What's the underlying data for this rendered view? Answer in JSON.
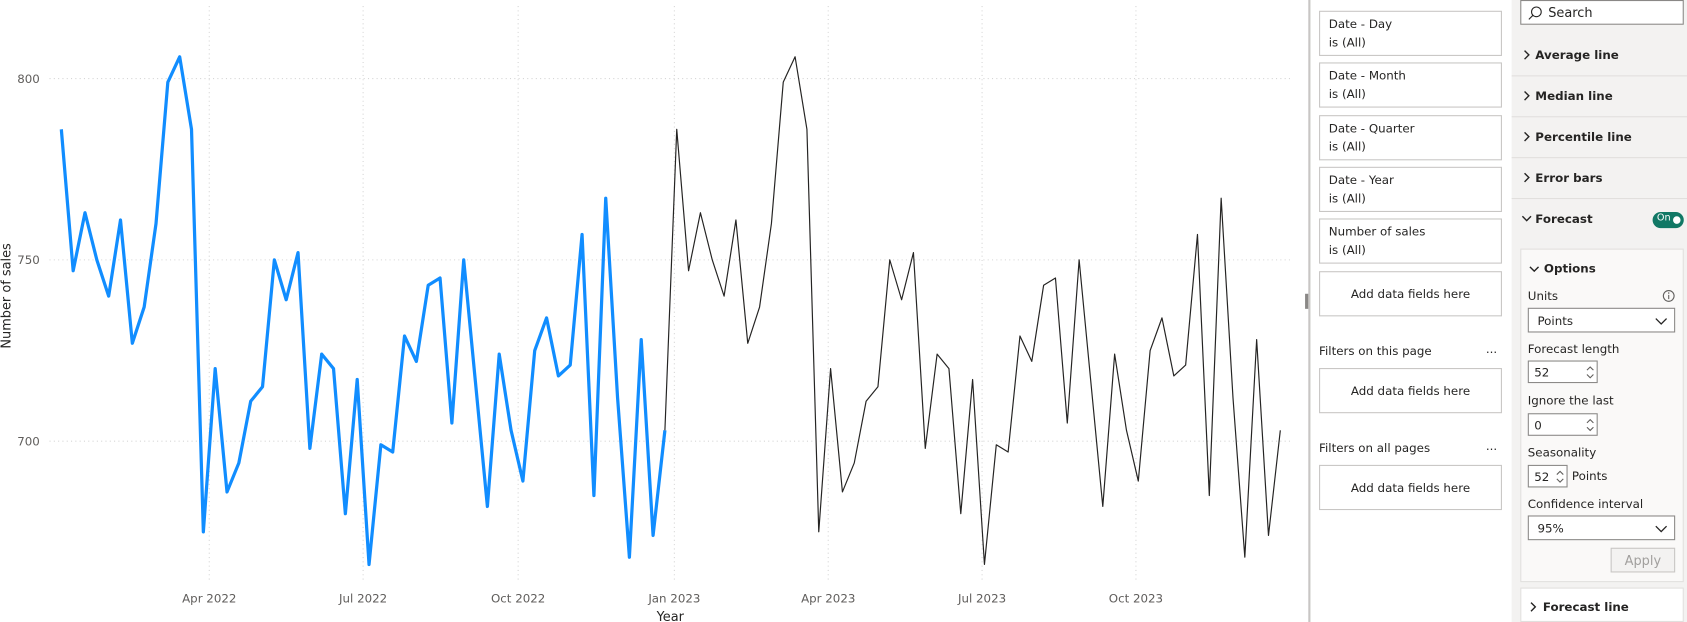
{
  "chart_data": {
    "type": "line",
    "x_label": "Year",
    "y_label": "Number of sales",
    "x": [
      0,
      1,
      2,
      3,
      4,
      5,
      6,
      7,
      8,
      9,
      10,
      11,
      12,
      13,
      14,
      15,
      16,
      17,
      18,
      19,
      20,
      21,
      22,
      23,
      24,
      25,
      26,
      27,
      28,
      29,
      30,
      31,
      32,
      33,
      34,
      35,
      36,
      37,
      38,
      39,
      40,
      41,
      42,
      43,
      44,
      45,
      46,
      47,
      48,
      49,
      50,
      51,
      52,
      53,
      54,
      55,
      56,
      57,
      58,
      59,
      60,
      61,
      62,
      63,
      64,
      65,
      66,
      67,
      68,
      69,
      70,
      71,
      72,
      73,
      74,
      75,
      76,
      77,
      78,
      79,
      80,
      81,
      82,
      83,
      84,
      85,
      86,
      87,
      88,
      89,
      90,
      91,
      92,
      93,
      94,
      95,
      96,
      97,
      98,
      99,
      100,
      101,
      102,
      103
    ],
    "xlim": [
      -1,
      104
    ],
    "xticks": [
      {
        "value": 12.5,
        "label": "Apr 2022"
      },
      {
        "value": 25.5,
        "label": "Jul 2022"
      },
      {
        "value": 38.6,
        "label": "Oct 2022"
      },
      {
        "value": 51.8,
        "label": "Jan 2023"
      },
      {
        "value": 64.8,
        "label": "Apr 2023"
      },
      {
        "value": 77.8,
        "label": "Jul 2023"
      },
      {
        "value": 90.8,
        "label": "Oct 2023"
      }
    ],
    "ylim": [
      661,
      820
    ],
    "yticks": [
      700,
      750,
      800
    ],
    "grid": true,
    "series": [
      {
        "color": "#118dff",
        "values": [
          786,
          747,
          763,
          750,
          740,
          761,
          727,
          737,
          760,
          799,
          806,
          786,
          675,
          720,
          686,
          694,
          711,
          715,
          750,
          739,
          752,
          698,
          724,
          720,
          680,
          717,
          666,
          699,
          697,
          729,
          722,
          743,
          745,
          705,
          750,
          716,
          682,
          724,
          703,
          689,
          725,
          734,
          718,
          721,
          757,
          685,
          767,
          712,
          668,
          728,
          674,
          703,
          null,
          null,
          null,
          null,
          null,
          null,
          null,
          null,
          null,
          null,
          null,
          null,
          null,
          null,
          null,
          null,
          null,
          null,
          null,
          null,
          null,
          null,
          null,
          null,
          null,
          null,
          null,
          null,
          null,
          null,
          null,
          null,
          null,
          null,
          null,
          null,
          null,
          null,
          null,
          null,
          null,
          null,
          null,
          null,
          null,
          null,
          null,
          null,
          null,
          null,
          null,
          null
        ]
      },
      {
        "color": "#252423",
        "values": [
          null,
          null,
          null,
          null,
          null,
          null,
          null,
          null,
          null,
          null,
          null,
          null,
          null,
          null,
          null,
          null,
          null,
          null,
          null,
          null,
          null,
          null,
          null,
          null,
          null,
          null,
          null,
          null,
          null,
          null,
          null,
          null,
          null,
          null,
          null,
          null,
          null,
          null,
          null,
          null,
          null,
          null,
          null,
          null,
          null,
          null,
          null,
          null,
          null,
          null,
          null,
          703,
          786,
          747,
          763,
          750,
          740,
          761,
          727,
          737,
          760,
          799,
          806,
          786,
          675,
          720,
          686,
          694,
          711,
          715,
          750,
          739,
          752,
          698,
          724,
          720,
          680,
          717,
          666,
          699,
          697,
          729,
          722,
          743,
          745,
          705,
          750,
          716,
          682,
          724,
          703,
          689,
          725,
          734,
          718,
          721,
          757,
          685,
          767,
          712,
          668,
          728,
          674,
          703
        ]
      }
    ]
  },
  "filters_pane": {
    "cards": [
      {
        "field": "Date - Day",
        "state": "is (All)"
      },
      {
        "field": "Date - Month",
        "state": "is (All)"
      },
      {
        "field": "Date - Quarter",
        "state": "is (All)"
      },
      {
        "field": "Date - Year",
        "state": "is (All)"
      },
      {
        "field": "Number of sales",
        "state": "is (All)"
      }
    ],
    "visual_add": "Add data fields here",
    "page": {
      "title": "Filters on this page",
      "more": "...",
      "add": "Add data fields here"
    },
    "all_pages": {
      "title": "Filters on all pages",
      "more": "...",
      "add": "Add data fields here"
    }
  },
  "format_pane": {
    "search": "Search",
    "sections": [
      "Average line",
      "Median line",
      "Percentile line",
      "Error bars"
    ],
    "forecast": {
      "title": "Forecast",
      "toggle": "On",
      "options": {
        "title": "Options",
        "units": {
          "label": "Units",
          "value": "Points"
        },
        "forecast_length": {
          "label": "Forecast length",
          "value": "52"
        },
        "ignore_last": {
          "label": "Ignore the last",
          "value": "0"
        },
        "seasonality": {
          "label": "Seasonality",
          "value": "52",
          "unit": "Points"
        },
        "confidence": {
          "label": "Confidence interval",
          "value": "95%"
        },
        "apply": "Apply"
      }
    },
    "forecast_line": "Forecast line"
  }
}
